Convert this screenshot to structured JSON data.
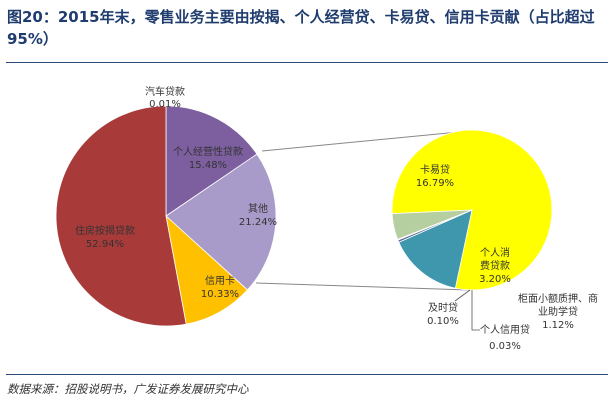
{
  "title": "图20：2015年末，零售业务主要由按揭、个人经营贷、卡易贷、信用卡贡献（占比超过95%）",
  "source": "数据来源：招股说明书，广发证券发展研究中心",
  "chart_data": {
    "type": "pie-of-pie",
    "title": "图20：2015年末，零售业务主要由按揭、个人经营贷、卡易贷、信用卡贡献（占比超过95%）",
    "main_pie": {
      "slices": [
        {
          "name": "汽车贷款",
          "value": 0.01,
          "label": "0.01%",
          "color": "#c0c0c0"
        },
        {
          "name": "个人经营性贷款",
          "value": 15.48,
          "label": "15.48%",
          "color": "#7d5fa0"
        },
        {
          "name": "其他",
          "value": 21.24,
          "label": "21.24%",
          "color": "#a99bc9"
        },
        {
          "name": "信用卡",
          "value": 10.33,
          "label": "10.33%",
          "color": "#ffc000"
        },
        {
          "name": "住房按揭贷款",
          "value": 52.94,
          "label": "52.94%",
          "color": "#a83a3a"
        }
      ]
    },
    "sub_pie": {
      "of": "其他",
      "slices": [
        {
          "name": "卡易贷",
          "value": 16.79,
          "label": "16.79%",
          "color": "#ffff00"
        },
        {
          "name": "个人消费贷款",
          "value": 3.2,
          "label": "3.20%",
          "color": "#3f97ad"
        },
        {
          "name": "及时贷",
          "value": 0.1,
          "label": "0.10%",
          "color": "#5a6a9a"
        },
        {
          "name": "个人信用贷",
          "value": 0.03,
          "label": "0.03%",
          "color": "#9bbb59"
        },
        {
          "name": "柜面小额质押、商业助学贷",
          "value": 1.12,
          "label": "1.12%",
          "color": "#b6cfa0"
        }
      ]
    }
  },
  "labels": {
    "auto": {
      "name": "汽车贷款",
      "value": "0.01%"
    },
    "business": {
      "line1": "个人经营性贷款",
      "value": "15.48%"
    },
    "other": {
      "name": "其他",
      "value": "21.24%"
    },
    "credit": {
      "name": "信用卡",
      "value": "10.33%"
    },
    "mortgage": {
      "name": "住房按揭贷款",
      "value": "52.94%"
    },
    "kayidai": {
      "name": "卡易贷",
      "value": "16.79%"
    },
    "consumer": {
      "line1": "个人消",
      "line2": "费贷款",
      "value": "3.20%"
    },
    "jishidai": {
      "name": "及时贷",
      "value": "0.10%"
    },
    "credit_personal": {
      "name": "个人信用贷",
      "value": "0.03%"
    },
    "counter": {
      "line1": "柜面小额质押、商",
      "line2": "业助学贷",
      "value": "1.12%"
    }
  }
}
